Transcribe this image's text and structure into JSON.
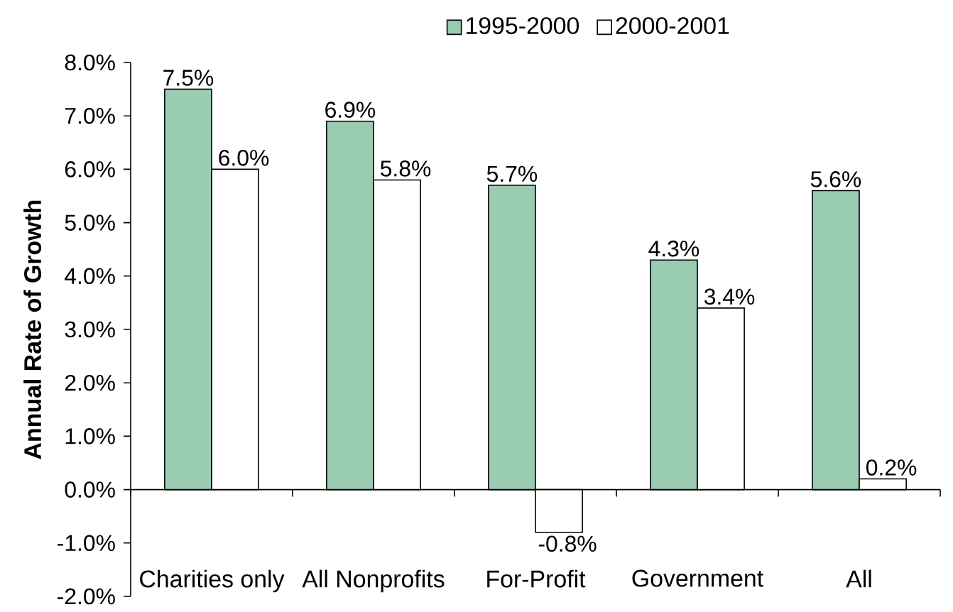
{
  "chart_data": {
    "type": "bar",
    "ylabel": "Annual Rate of Growth",
    "categories": [
      "Charities only",
      "All Nonprofits",
      "For-Profit",
      "Government",
      "All"
    ],
    "series": [
      {
        "name": "1995-2000",
        "color": "#99ccb1",
        "values": [
          7.5,
          6.9,
          5.7,
          4.3,
          5.6
        ],
        "value_labels": [
          "7.5%",
          "6.9%",
          "5.7%",
          "4.3%",
          "5.6%"
        ]
      },
      {
        "name": "2000-2001",
        "color": "#ffffff",
        "values": [
          6.0,
          5.8,
          -0.8,
          3.4,
          0.2
        ],
        "value_labels": [
          "6.0%",
          "5.8%",
          "-0.8%",
          "3.4%",
          "0.2%"
        ]
      }
    ],
    "ylim": [
      -2,
      8
    ],
    "yticks": [
      {
        "value": -2,
        "label": "-2.0%"
      },
      {
        "value": -1,
        "label": "-1.0%"
      },
      {
        "value": 0,
        "label": "0.0%"
      },
      {
        "value": 1,
        "label": "1.0%"
      },
      {
        "value": 2,
        "label": "2.0%"
      },
      {
        "value": 3,
        "label": "3.0%"
      },
      {
        "value": 4,
        "label": "4.0%"
      },
      {
        "value": 5,
        "label": "5.0%"
      },
      {
        "value": 6,
        "label": "6.0%"
      },
      {
        "value": 7,
        "label": "7.0%"
      },
      {
        "value": 8,
        "label": "8.0%"
      }
    ],
    "legend": "top"
  }
}
